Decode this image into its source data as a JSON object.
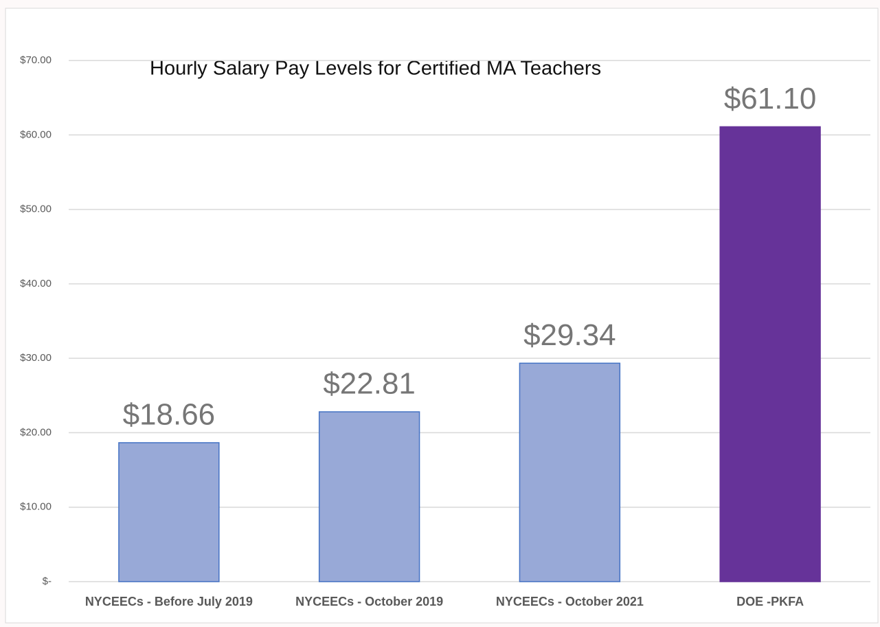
{
  "chart_data": {
    "type": "bar",
    "title": "Hourly Salary Pay Levels for Certified MA Teachers",
    "categories": [
      "NYCEECs - Before July 2019",
      "NYCEECs - October 2019",
      "NYCEECs - October 2021",
      "DOE -PKFA"
    ],
    "values": [
      18.66,
      22.81,
      29.34,
      61.1
    ],
    "value_labels": [
      "$18.66",
      "$22.81",
      "$29.34",
      "$61.10"
    ],
    "colors": [
      "#98a9d7",
      "#98a9d7",
      "#98a9d7",
      "#663399"
    ],
    "ylim": [
      0,
      70
    ],
    "yticks": [
      {
        "value": 0,
        "label": "$-"
      },
      {
        "value": 10,
        "label": "$10.00"
      },
      {
        "value": 20,
        "label": "$20.00"
      },
      {
        "value": 30,
        "label": "$30.00"
      },
      {
        "value": 40,
        "label": "$40.00"
      },
      {
        "value": 50,
        "label": "$50.00"
      },
      {
        "value": 60,
        "label": "$60.00"
      },
      {
        "value": 70,
        "label": "$70.00"
      }
    ],
    "grid": true
  }
}
